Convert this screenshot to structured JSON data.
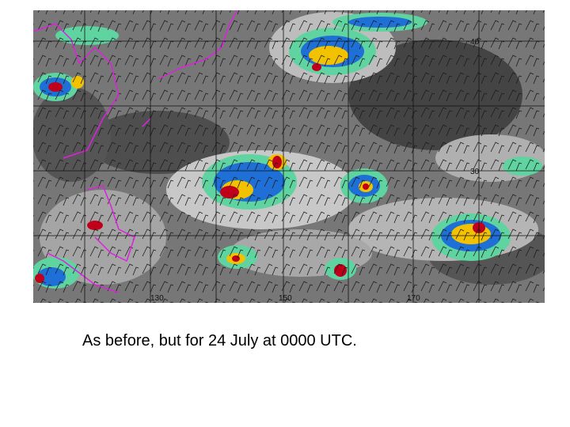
{
  "caption": "As before, but for 24 July at 0000 UTC.",
  "map": {
    "longitude_labels": [
      "130",
      "150",
      "170"
    ],
    "latitude_labels": [
      "30",
      "40"
    ]
  }
}
